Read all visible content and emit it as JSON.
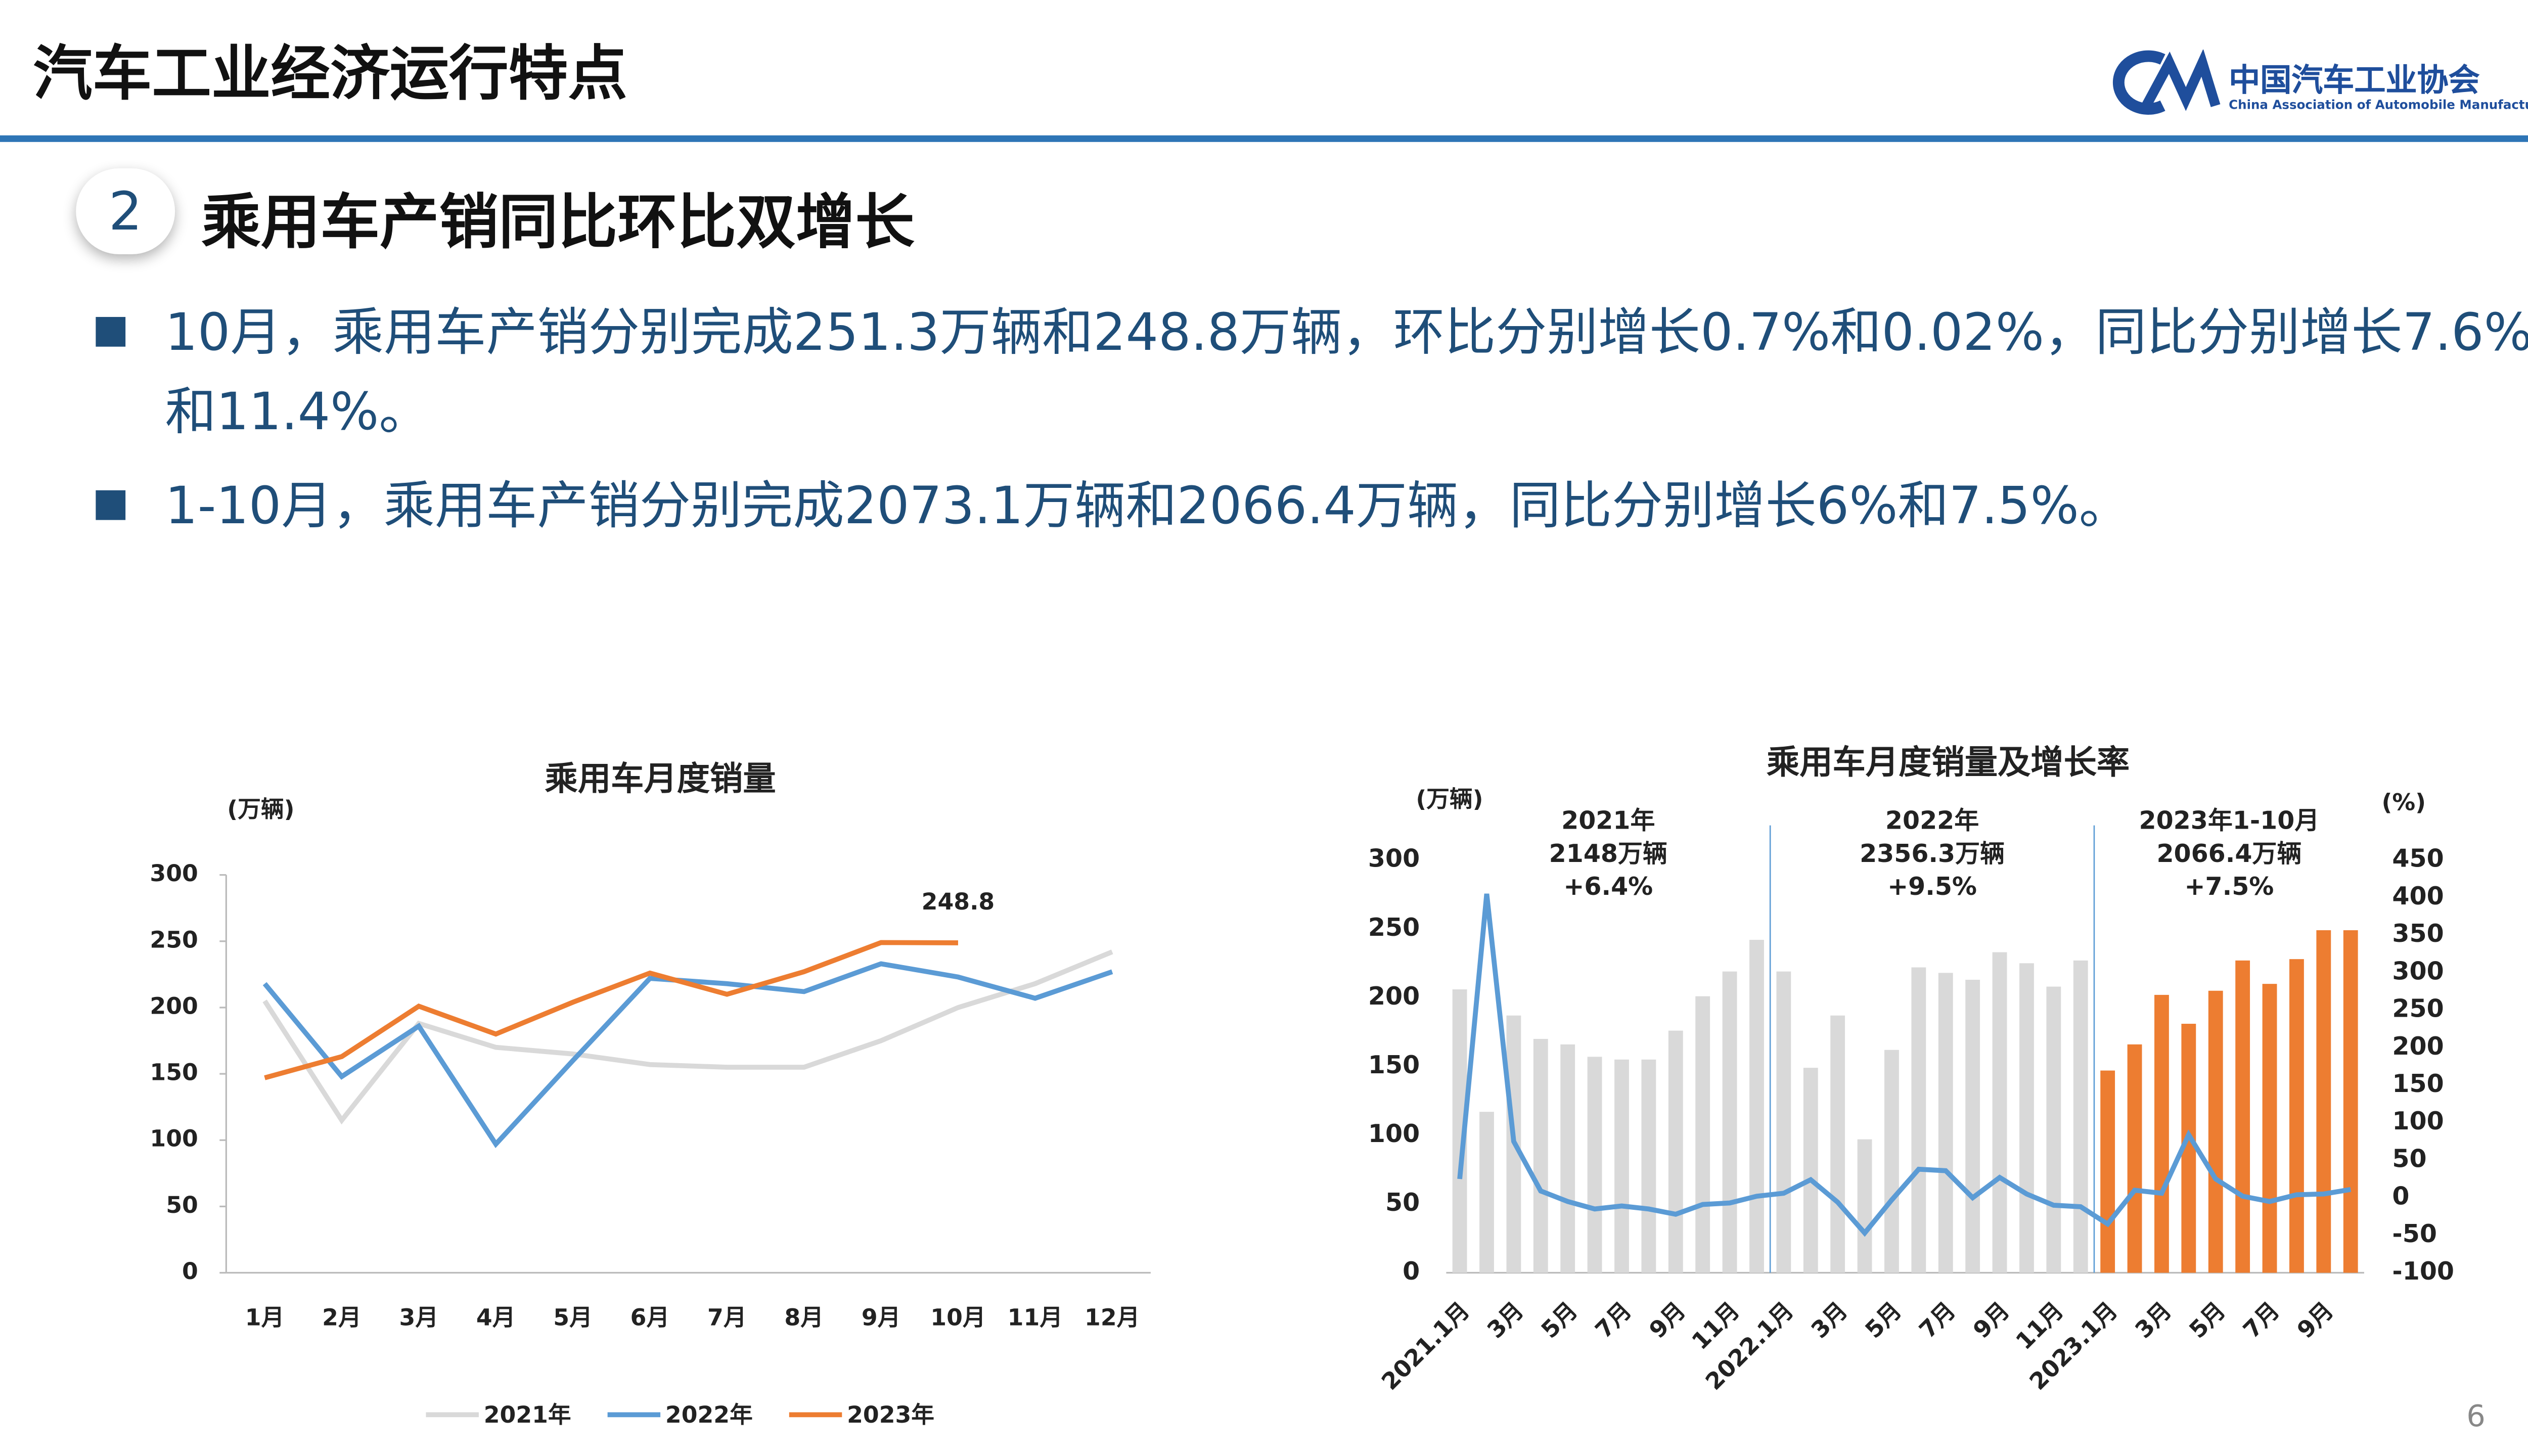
{
  "header": {
    "title": "汽车工业经济运行特点",
    "logo_cn": "中国汽车工业协会",
    "logo_en": "China Association of Automobile Manufacturers"
  },
  "section": {
    "number": "2",
    "title": "乘用车产销同比环比双增长"
  },
  "bullets": [
    "10月，乘用车产销分别完成251.3万辆和248.8万辆，环比分别增长0.7%和0.02%，同比分别增长7.6%和11.4%。",
    "1-10月，乘用车产销分别完成2073.1万辆和2066.4万辆，同比分别增长6%和7.5%。"
  ],
  "page_number": "6",
  "chart_data": [
    {
      "type": "line",
      "title": "乘用车月度销量",
      "y_label": "(万辆)",
      "categories": [
        "1月",
        "2月",
        "3月",
        "4月",
        "5月",
        "6月",
        "7月",
        "8月",
        "9月",
        "10月",
        "11月",
        "12月"
      ],
      "series": [
        {
          "name": "2021年",
          "color": "#d9d9d9",
          "values": [
            205,
            115,
            188,
            170,
            165,
            157,
            155,
            155,
            175,
            200,
            218,
            242
          ]
        },
        {
          "name": "2022年",
          "color": "#5b9bd5",
          "values": [
            218,
            148,
            186,
            97,
            160,
            222,
            218,
            212,
            233,
            223,
            207,
            227
          ]
        },
        {
          "name": "2023年",
          "color": "#ed7d31",
          "values": [
            147,
            163,
            201,
            180,
            204,
            226,
            210,
            227,
            249,
            248.8,
            null,
            null
          ],
          "value_labels": [
            null,
            null,
            null,
            null,
            null,
            null,
            null,
            null,
            null,
            "248.8",
            null,
            null
          ]
        }
      ],
      "ylim": [
        0,
        300
      ],
      "yticks": [
        0,
        50,
        100,
        150,
        200,
        250,
        300
      ],
      "legend": "bottom"
    },
    {
      "type": "bar-line",
      "title": "乘用车月度销量及增长率",
      "y_label": "(万辆)",
      "y2_label": "(%)",
      "categories": [
        "2021.1月",
        null,
        "3月",
        null,
        "5月",
        null,
        "7月",
        null,
        "9月",
        null,
        "11月",
        null,
        "2022.1月",
        null,
        "3月",
        null,
        "5月",
        null,
        "7月",
        null,
        "9月",
        null,
        "11月",
        null,
        "2023.1月",
        null,
        "3月",
        null,
        "5月",
        null,
        "7月",
        null,
        "9月",
        null
      ],
      "series": [
        {
          "type": "bar",
          "color": "#d9d9d9",
          "values": [
            206,
            117,
            187,
            170,
            166,
            157,
            155,
            155,
            176,
            201,
            219,
            242,
            219,
            149,
            187,
            97,
            162,
            222,
            218,
            213,
            233,
            225,
            208,
            227,
            null,
            null,
            null,
            null,
            null,
            null,
            null,
            null,
            null,
            null
          ]
        },
        {
          "type": "bar",
          "color": "#ed7d31",
          "values": [
            null,
            null,
            null,
            null,
            null,
            null,
            null,
            null,
            null,
            null,
            null,
            null,
            null,
            null,
            null,
            null,
            null,
            null,
            null,
            null,
            null,
            null,
            null,
            null,
            147,
            166,
            202,
            181,
            205,
            227,
            210,
            228,
            249,
            249
          ]
        },
        {
          "type": "line",
          "color": "#5b9bd5",
          "axis": "y2",
          "values": [
            25,
            405,
            75,
            9,
            -5,
            -15,
            -11,
            -15,
            -22,
            -9,
            -7,
            2,
            6,
            24,
            -6,
            -47,
            -3,
            38,
            36,
            0,
            27,
            5,
            -10,
            -12,
            -35,
            10,
            6,
            84,
            25,
            2,
            -5,
            4,
            5,
            11
          ]
        }
      ],
      "annotations": [
        [
          "2021年",
          "2148万辆",
          "+6.4%"
        ],
        [
          "2022年",
          "2356.3万辆",
          "+9.5%"
        ],
        [
          "2023年1-10月",
          "2066.4万辆",
          "+7.5%"
        ]
      ],
      "ylim": [
        0,
        300
      ],
      "yticks": [
        0,
        50,
        100,
        150,
        200,
        250,
        300
      ],
      "y2lim": [
        -100,
        450
      ],
      "y2ticks": [
        -100,
        -50,
        0,
        50,
        100,
        150,
        200,
        250,
        300,
        350,
        400,
        450
      ]
    }
  ]
}
